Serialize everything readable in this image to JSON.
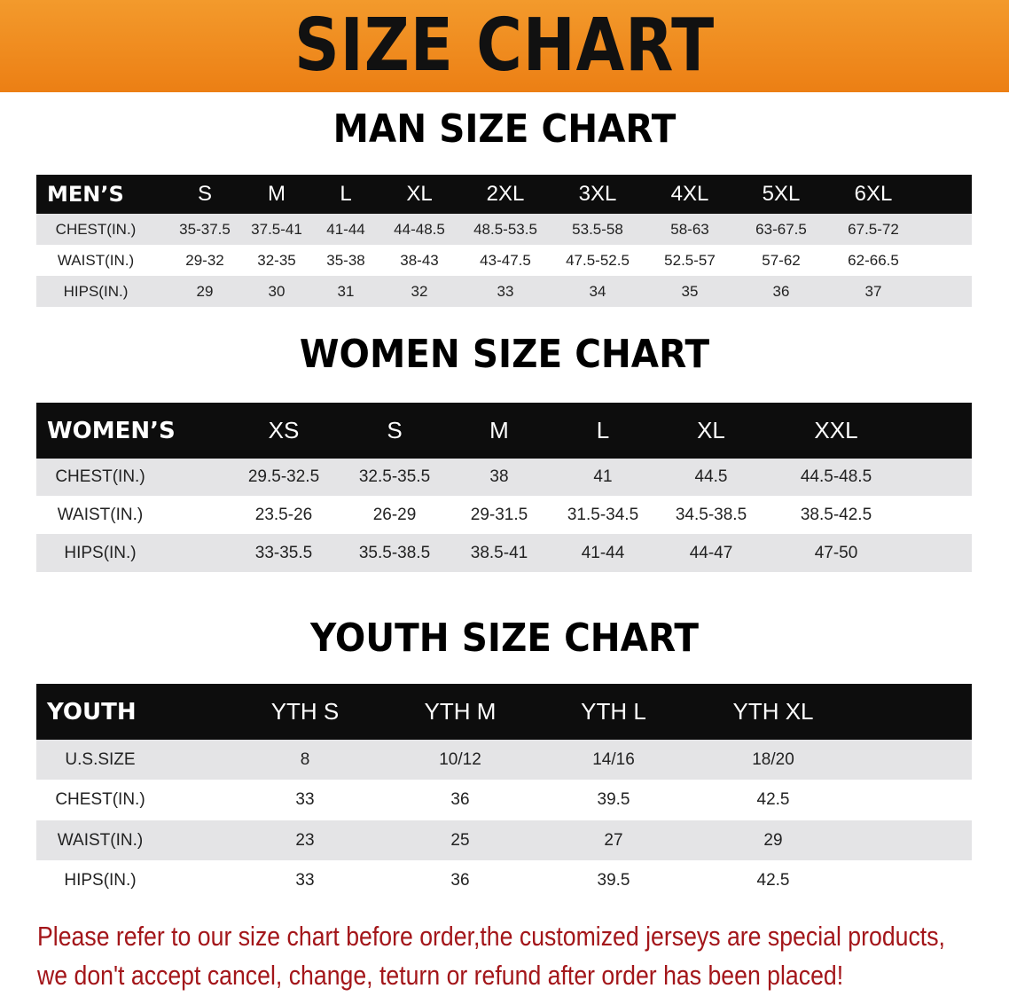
{
  "banner": {
    "title": "SIZE CHART",
    "color": "#ec7f14"
  },
  "men": {
    "title": "MAN SIZE CHART",
    "header": [
      "MEN’S",
      "S",
      "M",
      "L",
      "XL",
      "2XL",
      "3XL",
      "4XL",
      "5XL",
      "6XL"
    ],
    "rows": [
      [
        "CHEST(IN.)",
        "35-37.5",
        "37.5-41",
        "41-44",
        "44-48.5",
        "48.5-53.5",
        "53.5-58",
        "58-63",
        "63-67.5",
        "67.5-72"
      ],
      [
        "WAIST(IN.)",
        "29-32",
        "32-35",
        "35-38",
        "38-43",
        "43-47.5",
        "47.5-52.5",
        "52.5-57",
        "57-62",
        "62-66.5"
      ],
      [
        "HIPS(IN.)",
        "29",
        "30",
        "31",
        "32",
        "33",
        "34",
        "35",
        "36",
        "37"
      ]
    ]
  },
  "women": {
    "title": "WOMEN SIZE CHART",
    "header": [
      "WOMEN’S",
      "XS",
      "S",
      "M",
      "L",
      "XL",
      "XXL"
    ],
    "rows": [
      [
        "CHEST(IN.)",
        "29.5-32.5",
        "32.5-35.5",
        "38",
        "41",
        "44.5",
        "44.5-48.5"
      ],
      [
        "WAIST(IN.)",
        "23.5-26",
        "26-29",
        "29-31.5",
        "31.5-34.5",
        "34.5-38.5",
        "38.5-42.5"
      ],
      [
        "HIPS(IN.)",
        "33-35.5",
        "35.5-38.5",
        "38.5-41",
        "41-44",
        "44-47",
        "47-50"
      ]
    ]
  },
  "youth": {
    "title": "YOUTH SIZE CHART",
    "header": [
      "YOUTH",
      "YTH S",
      "YTH M",
      "YTH L",
      "YTH XL"
    ],
    "rows": [
      [
        "U.S.SIZE",
        "8",
        "10/12",
        "14/16",
        "18/20"
      ],
      [
        "CHEST(IN.)",
        "33",
        "36",
        "39.5",
        "42.5"
      ],
      [
        "WAIST(IN.)",
        "23",
        "25",
        "27",
        "29"
      ],
      [
        "HIPS(IN.)",
        "33",
        "36",
        "39.5",
        "42.5"
      ]
    ]
  },
  "notice": {
    "line1": "Please refer to our size chart before order,the customized jerseys are special products,",
    "line2": "we don't accept cancel, change, teturn or refund after order has been placed!",
    "color": "#a3161a"
  }
}
